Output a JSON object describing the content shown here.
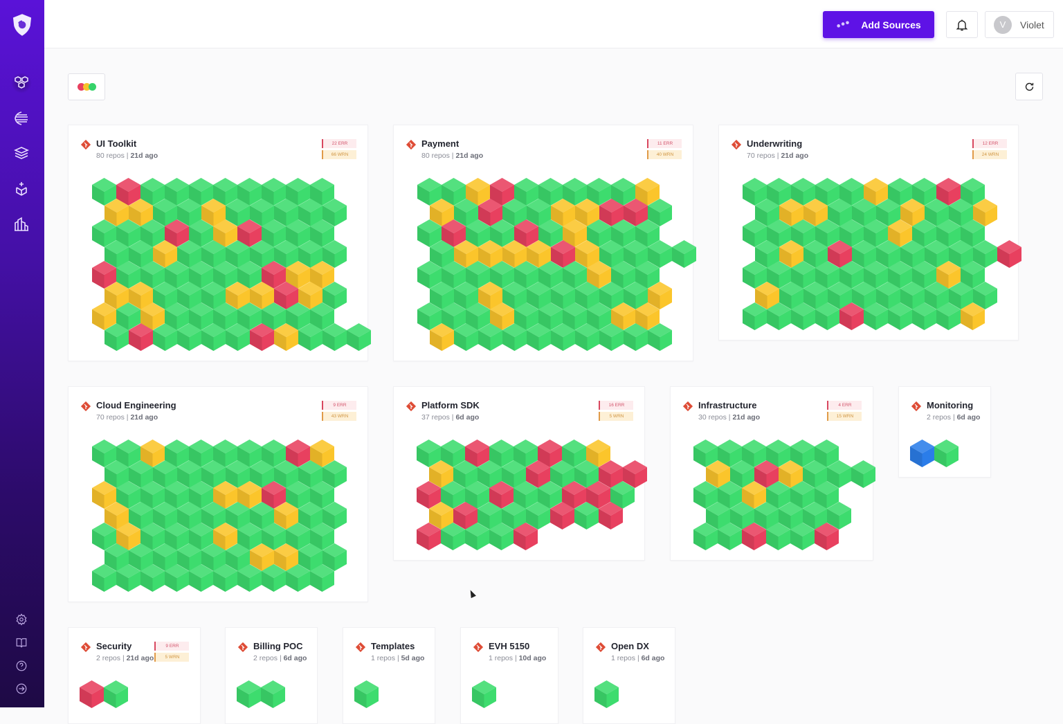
{
  "header": {
    "add_sources_label": "Add Sources",
    "user_name": "Violet",
    "user_initial": "V",
    "accent": "#5e12e6"
  },
  "sidebar": {
    "items": [
      {
        "icon": "cubes-icon",
        "active": true
      },
      {
        "icon": "streams-icon"
      },
      {
        "icon": "layers-icon"
      },
      {
        "icon": "box-add-icon"
      },
      {
        "icon": "buildings-icon"
      }
    ],
    "bottom_items": [
      {
        "icon": "gear-icon"
      },
      {
        "icon": "book-icon"
      },
      {
        "icon": "help-icon"
      },
      {
        "icon": "arrow-right-circle-icon"
      }
    ]
  },
  "filter": {
    "colors": [
      "#e8405f",
      "#f7c22b",
      "#36d36a"
    ]
  },
  "status_colors": {
    "g": "#3ddc6e",
    "r": "#e8405f",
    "y": "#fbc52b",
    "b": "#2b7de9"
  },
  "groups": [
    {
      "name": "UI Toolkit",
      "repos": "80 repos",
      "age": "21d ago",
      "err": "22 ERR",
      "wrn": "66 WRN",
      "rows": [
        "grgggggggg",
        "yyggyggggg",
        "gggrgyrggg",
        "ggyggggggg",
        "rggggggryy",
        "yygggyyryg",
        "ygyggggggg",
        "grggggryggg"
      ]
    },
    {
      "name": "Payment",
      "repos": "80 repos",
      "age": "21d ago",
      "err": "11 ERR",
      "wrn": "40 WRN",
      "rows": [
        "ggyrgggggy",
        "ygrggyyrrg",
        "grggrgyggg",
        "gyyyyrygggg",
        "gggggggygg",
        "ggyggggggy",
        "gggyggggyy",
        "yggggggggg"
      ]
    },
    {
      "name": "Underwriting",
      "repos": "70 repos",
      "age": "21d ago",
      "err": "12 ERR",
      "wrn": "24 WRN",
      "rows": [
        "gggggyggrg",
        "gyygggyggy",
        "ggggggyggg",
        "gygrggggggr",
        "ggggggggyg",
        "yggggggggg",
        "ggggrggggy"
      ]
    },
    {
      "name": "Cloud Engineering",
      "repos": "70 repos",
      "age": "21d ago",
      "err": "9 ERR",
      "wrn": "43 WRN",
      "rows": [
        "ggygggggry",
        "gggggggggg",
        "ygggg yyrgg",
        "yggggggygg",
        "gygggygggg",
        "ggggggyygg",
        "gggggggggg"
      ]
    },
    {
      "name": "Platform SDK",
      "repos": "37 repos",
      "age": "6d ago",
      "err": "16 ERR",
      "wrn": "5 WRN",
      "rows": [
        "ggrggrgy",
        "ygggrggrr",
        "rggrggrrg",
        "yrgggrgr",
        "rgggr"
      ]
    },
    {
      "name": "Infrastructure",
      "repos": "30 repos",
      "age": "21d ago",
      "err": "4 ERR",
      "wrn": "15 WRN",
      "rows": [
        "gggggg",
        "ygryggg",
        "ggyggg",
        "gggggg",
        "ggrggr"
      ]
    },
    {
      "name": "Monitoring",
      "repos": "2 repos",
      "age": "6d ago",
      "rows": [
        "bg"
      ]
    },
    {
      "name": "Security",
      "repos": "2 repos",
      "age": "21d ago",
      "err": "9 ERR",
      "wrn": "5 WRN",
      "rows": [
        "rg"
      ]
    },
    {
      "name": "Billing POC",
      "repos": "2 repos",
      "age": "6d ago",
      "rows": [
        "gg"
      ]
    },
    {
      "name": "Templates",
      "repos": "1 repos",
      "age": "5d ago",
      "rows": [
        "g"
      ]
    },
    {
      "name": "EVH 5150",
      "repos": "1 repos",
      "age": "10d ago",
      "rows": [
        "g"
      ]
    },
    {
      "name": "Open DX",
      "repos": "1 repos",
      "age": "6d ago",
      "rows": [
        "g"
      ]
    }
  ]
}
